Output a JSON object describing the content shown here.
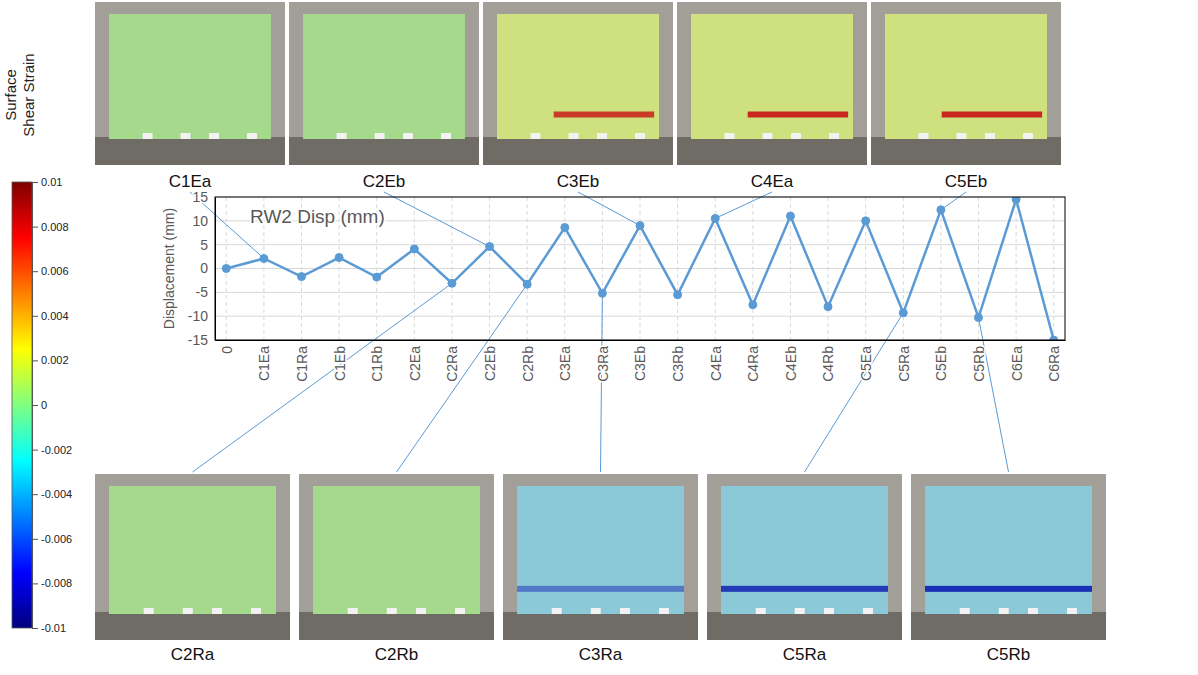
{
  "chart_data": {
    "type": "line",
    "categories": [
      "0",
      "C1Ea",
      "C1Ra",
      "C1Eb",
      "C1Rb",
      "C2Ea",
      "C2Ra",
      "C2Eb",
      "C2Rb",
      "C3Ea",
      "C3Ra",
      "C3Eb",
      "C3Rb",
      "C4Ea",
      "C4Ra",
      "C4Eb",
      "C4Rb",
      "C5Ea",
      "C5Ra",
      "C5Eb",
      "C5Rb",
      "C6Ea",
      "C6Ra"
    ],
    "series": [
      {
        "name": "RW2 Disp (mm)",
        "color": "#5b9bd5",
        "marker": "circle",
        "values": [
          0,
          2.1,
          -1.7,
          2.3,
          -1.8,
          4.1,
          -3.1,
          4.6,
          -3.3,
          8.6,
          -5.2,
          9.0,
          -5.5,
          10.5,
          -7.6,
          11.0,
          -8.0,
          10.0,
          -9.3,
          12.3,
          -10.3,
          14.5,
          -15.0
        ]
      }
    ],
    "y_label": "Displacement (mm)",
    "ylim": [
      -15,
      15
    ],
    "yticks": [
      -15,
      -10,
      -5,
      0,
      5,
      10,
      15
    ],
    "grid": true,
    "legend": "top-left",
    "colorbar": {
      "label": "Surface Shear Strain",
      "range": [
        -0.01,
        0.01
      ],
      "ticks": [
        0.01,
        0.008,
        0.006,
        0.004,
        0.002,
        0,
        -0.002,
        -0.004,
        -0.006,
        -0.008,
        -0.01
      ]
    },
    "panels_top": [
      "C1Ea",
      "C2Eb",
      "C3Eb",
      "C4Ea",
      "C5Eb"
    ],
    "panels_bottom": [
      "C2Ra",
      "C2Rb",
      "C3Ra",
      "C5Ra",
      "C5Rb"
    ]
  }
}
